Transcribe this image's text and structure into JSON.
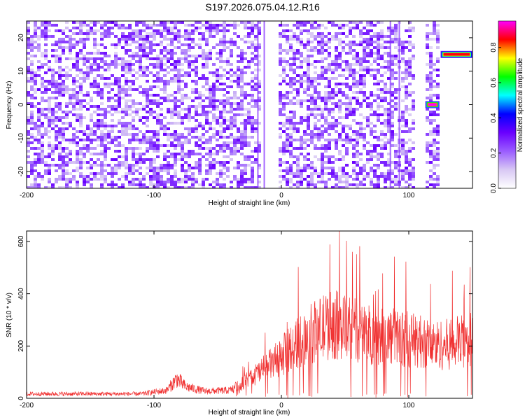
{
  "title": "S197.2026.075.04.12.R16",
  "chart_data": [
    {
      "type": "heatmap",
      "xlabel": "Height of straight line (km)",
      "ylabel": "Frequency (Hz)",
      "xlim": [
        -200,
        150
      ],
      "ylim": [
        -25,
        25
      ],
      "xticks": [
        -200,
        -100,
        0,
        100
      ],
      "yticks": [
        -20,
        -10,
        0,
        10,
        20
      ],
      "colorbar": {
        "label": "Normalized spectral amplitude",
        "range": [
          0,
          0.95
        ],
        "ticks": [
          0.0,
          0.2,
          0.4,
          0.6,
          0.8
        ],
        "colors": [
          "#ffffff",
          "#d8c8f4",
          "#9a5cff",
          "#6a00ff",
          "#0000ff",
          "#00ffff",
          "#00ff00",
          "#ffff00",
          "#ff0000",
          "#ff00ff"
        ]
      },
      "features": [
        {
          "x": [
            113,
            124
          ],
          "freq": 0,
          "peak": 0.95
        },
        {
          "x": [
            125,
            150
          ],
          "freq": 15,
          "peak": 0.85
        }
      ]
    },
    {
      "type": "line",
      "xlabel": "Height of straight line (km)",
      "ylabel": "SNR (10 * v/v)",
      "xlim": [
        -200,
        150
      ],
      "ylim": [
        0,
        640
      ],
      "xticks": [
        -200,
        -100,
        0,
        100
      ],
      "yticks": [
        0,
        200,
        400,
        600
      ],
      "color": "#f03030",
      "envelope": {
        "x": [
          -200,
          -110,
          -90,
          -82,
          -75,
          -60,
          -40,
          -25,
          -10,
          0,
          10,
          20,
          30,
          40,
          50,
          60,
          70,
          80,
          90,
          100,
          110,
          120,
          130,
          140,
          150
        ],
        "y": [
          25,
          25,
          45,
          110,
          65,
          40,
          45,
          110,
          185,
          235,
          300,
          350,
          390,
          420,
          400,
          380,
          360,
          345,
          350,
          335,
          320,
          300,
          305,
          320,
          330
        ]
      }
    }
  ]
}
